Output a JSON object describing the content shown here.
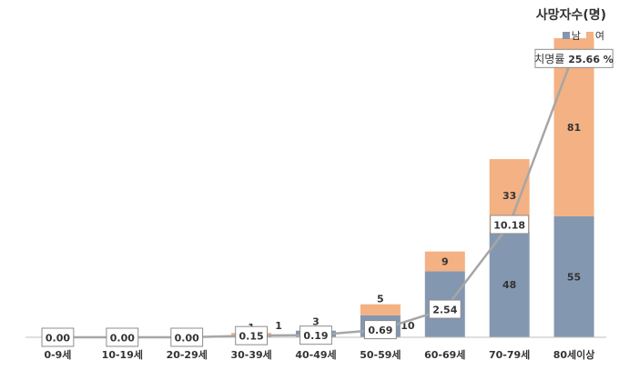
{
  "chart_data": {
    "type": "bar",
    "stacked": true,
    "categories": [
      "0-9세",
      "10-19세",
      "20-29세",
      "30-39세",
      "40-49세",
      "50-59세",
      "60-69세",
      "70-79세",
      "80세이상"
    ],
    "series": [
      {
        "name": "남",
        "color": "#8497B0",
        "values": [
          0,
          0,
          0,
          1,
          3,
          10,
          30,
          48,
          55
        ],
        "labels": [
          "",
          "",
          "",
          "1",
          "3",
          "10",
          "30",
          "48",
          "55"
        ]
      },
      {
        "name": "여",
        "color": "#F4B183",
        "values": [
          0,
          0,
          0,
          1,
          0,
          5,
          9,
          33,
          81
        ],
        "labels": [
          "",
          "",
          "",
          "1",
          "",
          "5",
          "9",
          "33",
          "81"
        ]
      }
    ],
    "line": {
      "name": "치명률",
      "color": "#A6A6A6",
      "values": [
        0.0,
        0.0,
        0.0,
        0.15,
        0.19,
        0.69,
        2.54,
        10.18,
        25.66
      ],
      "labels": [
        "0.00",
        "0.00",
        "0.00",
        "0.15",
        "0.19",
        "0.69",
        "2.54",
        "10.18",
        "25.66 %"
      ],
      "last_label_prefix": "치명률"
    },
    "ylabel": "사망자수(명)",
    "ylim": [
      0,
      136
    ],
    "line_ylim": [
      0,
      27
    ],
    "grid": false,
    "legend_position": "top-right"
  }
}
